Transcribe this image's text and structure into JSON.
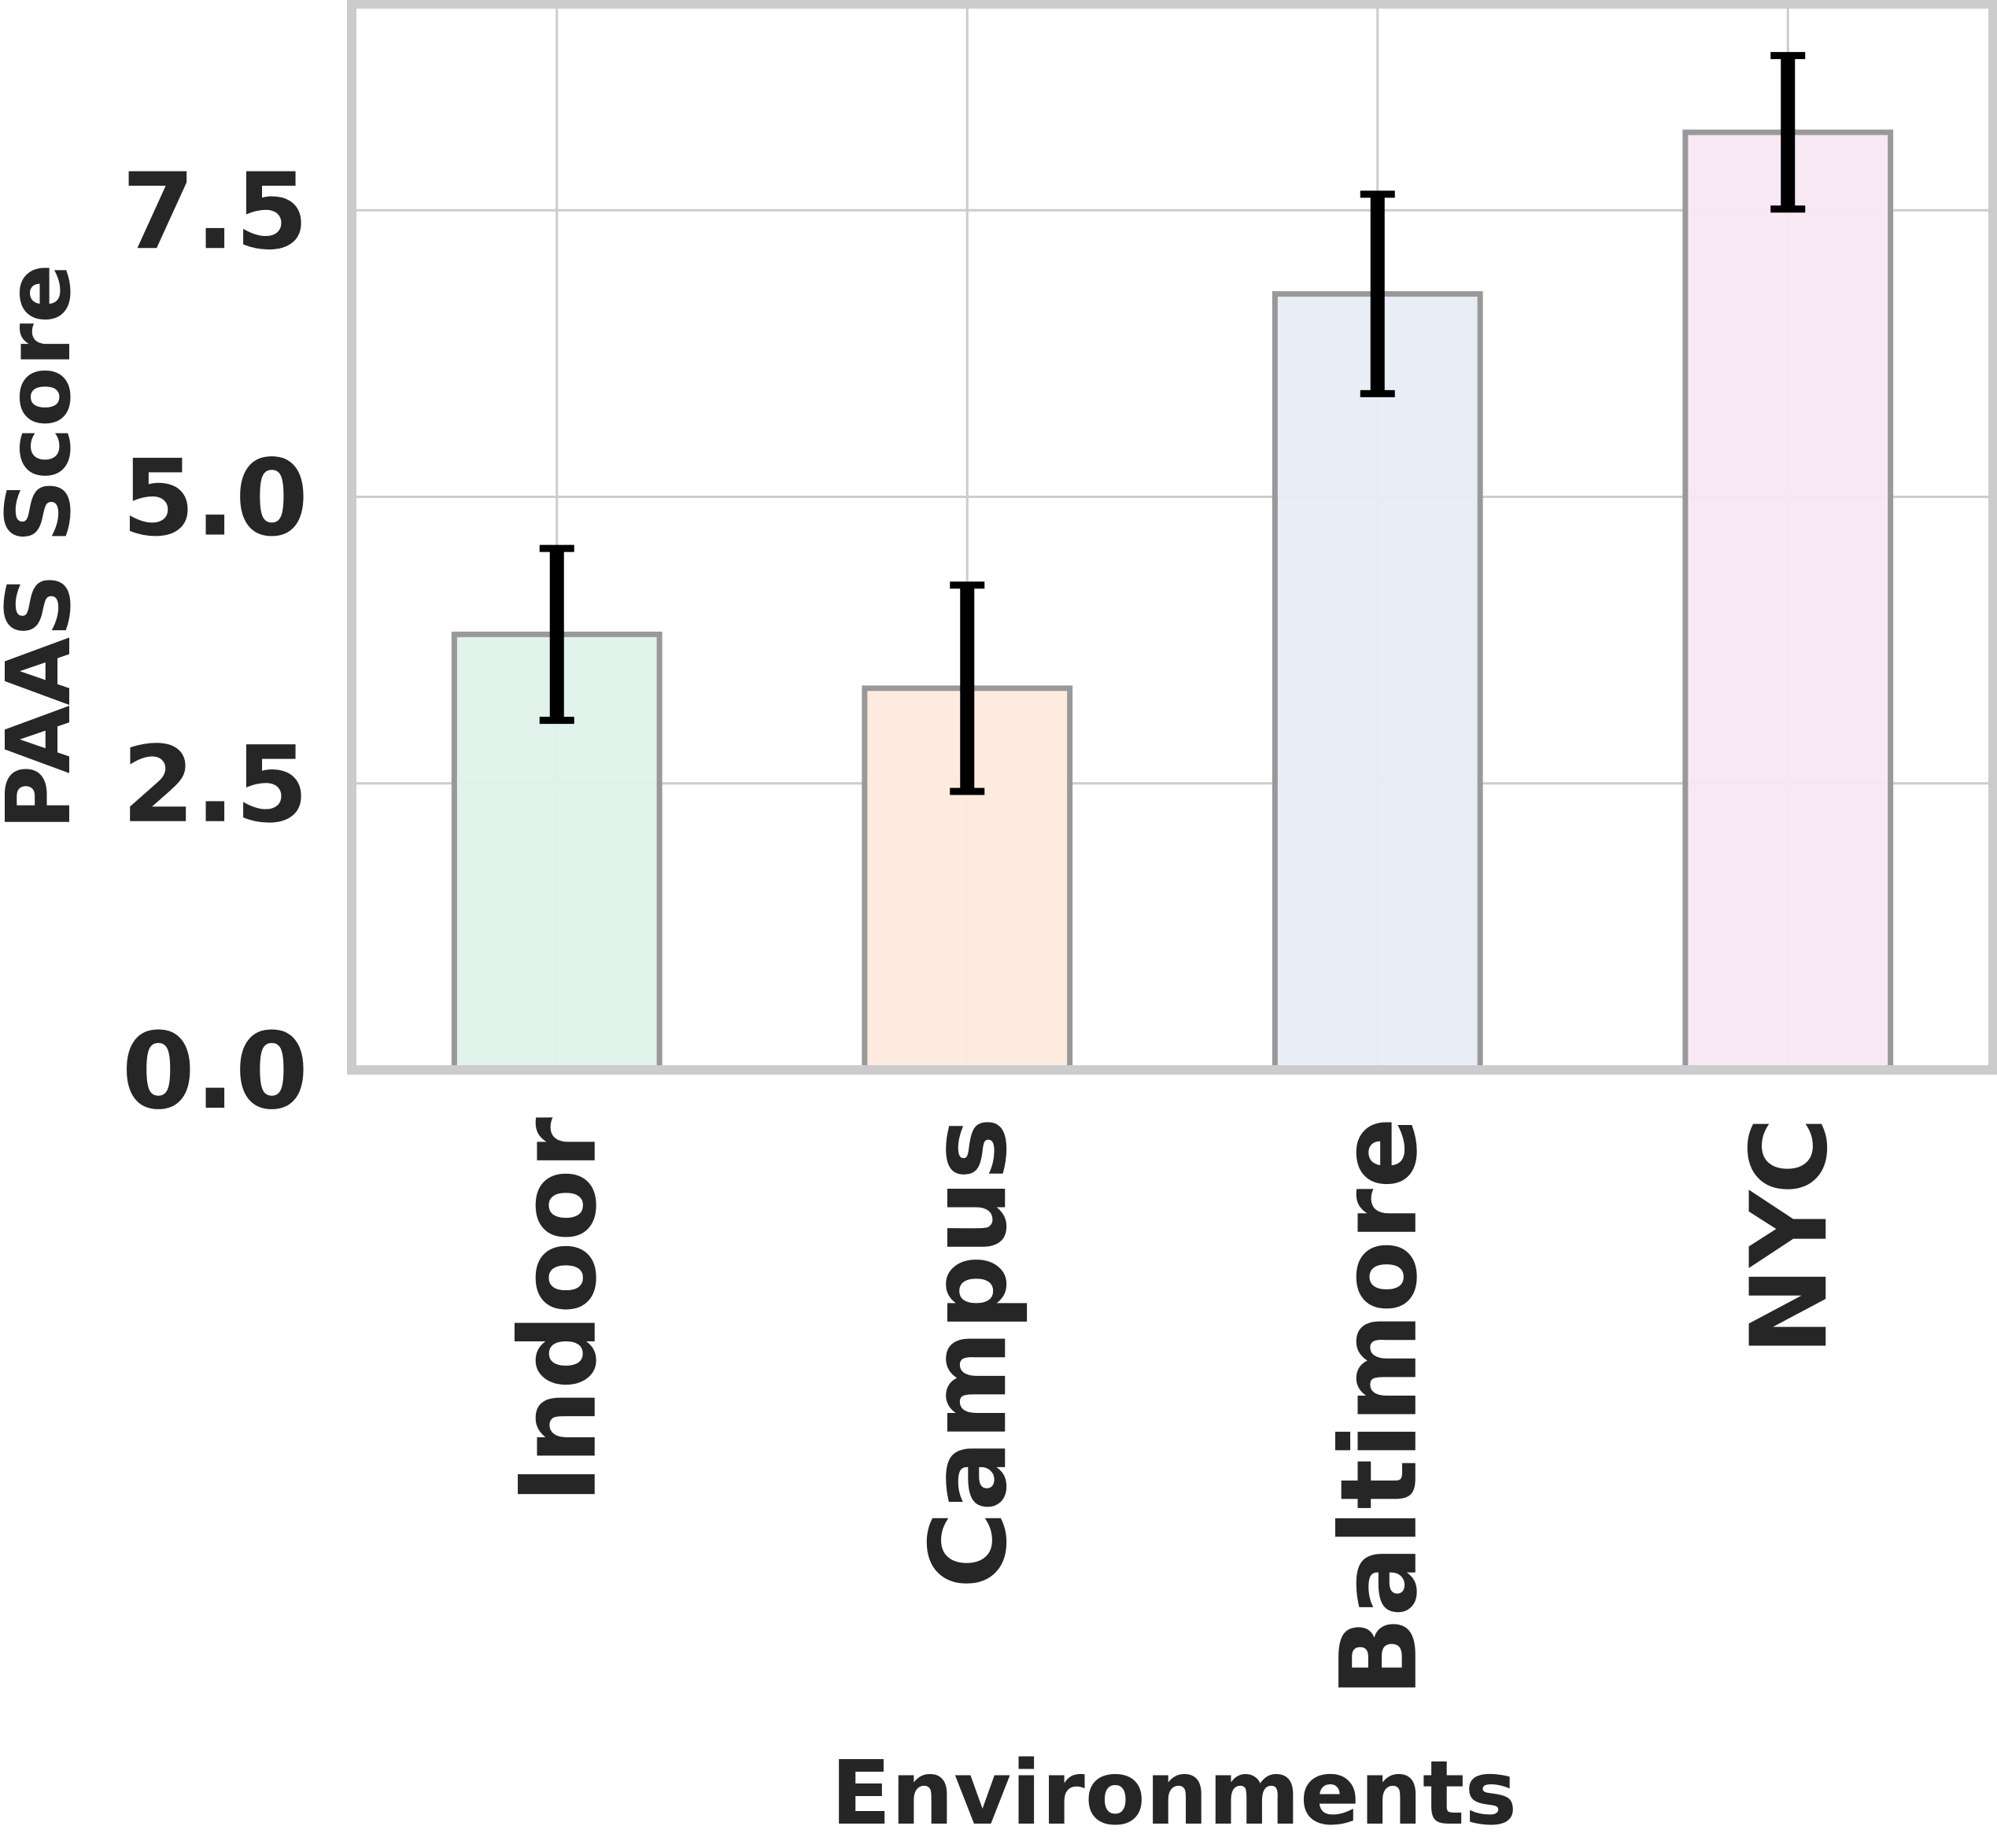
{
  "chart_data": {
    "type": "bar",
    "categories": [
      "Indoor",
      "Campus",
      "Baltimore",
      "NYC"
    ],
    "values": [
      3.8,
      3.33,
      6.77,
      8.18
    ],
    "error": [
      0.75,
      0.9,
      0.87,
      0.67
    ],
    "bar_colors": [
      "#dff2e9",
      "#fdeade",
      "#e8edf5",
      "#f8e7f3"
    ],
    "bar_edge_color": "#999999",
    "error_color": "#000000",
    "xlabel": "Environments",
    "ylabel": "PAAS Score",
    "yticks": [
      0.0,
      2.5,
      5.0,
      7.5
    ],
    "ytick_labels": [
      "0.0",
      "2.5",
      "5.0",
      "7.5"
    ],
    "ylim": [
      0,
      9.3
    ],
    "grid": true,
    "frame_color": "#cccccc",
    "grid_color": "#cccccc"
  }
}
